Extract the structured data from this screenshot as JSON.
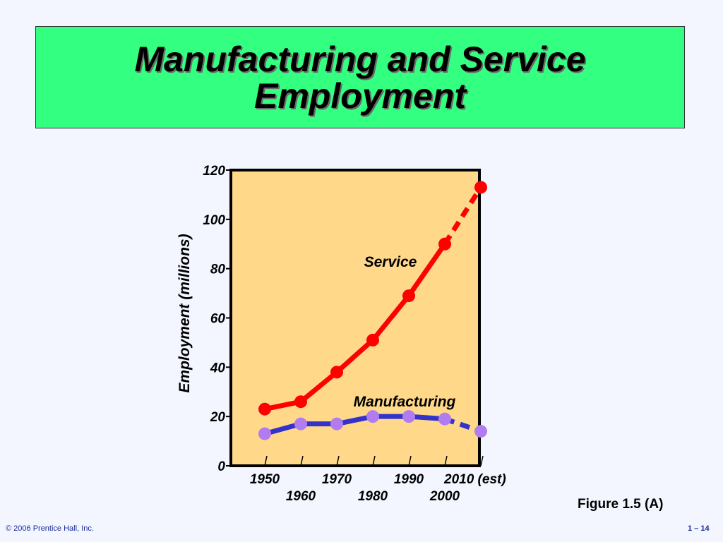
{
  "slide": {
    "title_line1": "Manufacturing and Service",
    "title_line2": "Employment",
    "figure_caption": "Figure 1.5 (A)",
    "copyright": "© 2006 Prentice Hall, Inc.",
    "page_number": "1 – 14"
  },
  "colors": {
    "title_background": "#33ff80",
    "plot_background": "#ffd88a",
    "service": "#ff0000",
    "manufacturing_line": "#3333cc",
    "manufacturing_marker": "#b07cf0"
  },
  "chart_data": {
    "type": "line",
    "title": "",
    "xlabel": "",
    "ylabel": "Employment (millions)",
    "ylim": [
      0,
      120
    ],
    "yticks": [
      "0",
      "20",
      "40",
      "60",
      "80",
      "100",
      "120"
    ],
    "x": [
      1950,
      1960,
      1970,
      1980,
      1990,
      2000,
      2010
    ],
    "xtick_labels": [
      "1950",
      "1960",
      "1970",
      "1980",
      "1990",
      "2000",
      "2010 (est)"
    ],
    "grid": false,
    "series": [
      {
        "name": "Service",
        "values": [
          23,
          26,
          38,
          51,
          69,
          90,
          113
        ],
        "dashed_last_segment": true
      },
      {
        "name": "Manufacturing",
        "values": [
          13,
          17,
          17,
          20,
          20,
          19,
          14
        ],
        "dashed_last_segment": true
      }
    ]
  }
}
